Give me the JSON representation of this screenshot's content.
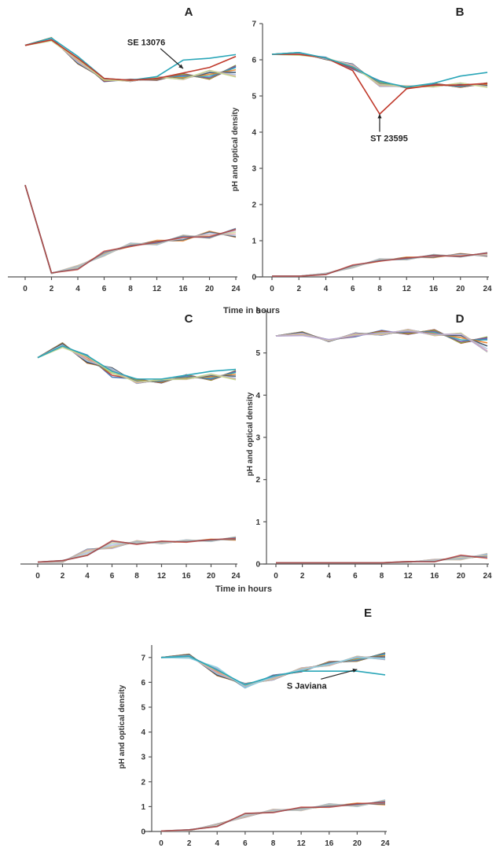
{
  "figure": {
    "x_axis_title": "Time in hours",
    "y_axis_title": "pH and optical density"
  },
  "palette": [
    "#3b6fb6",
    "#c0392b",
    "#8bb43a",
    "#7a4fa3",
    "#2aa6b8",
    "#e67e22",
    "#34495e",
    "#a8c3e6",
    "#e8a0a0",
    "#c3d88f",
    "#b9a4d6",
    "#8fd3df",
    "#f5b97d"
  ],
  "chart_data": [
    {
      "panel": "A",
      "type": "line",
      "categories": [
        "0",
        "2",
        "4",
        "6",
        "8",
        "12",
        "16",
        "20",
        "24"
      ],
      "ylim": [
        0,
        7
      ],
      "y_ticks": [],
      "show_y_axis": false,
      "show_xlabel": true,
      "annotation": {
        "text": "SE 13076",
        "point": {
          "x": 6,
          "y": 5.67
        },
        "text_at": {
          "x": 4.6,
          "y": 6.3
        }
      },
      "groups": [
        {
          "kind": "pH",
          "count": 10,
          "base": [
            6.3,
            6.45,
            5.9,
            5.35,
            5.35,
            5.4,
            5.45,
            5.5,
            5.6
          ],
          "spread": [
            0,
            0.06,
            0.1,
            0.05,
            0.03,
            0.05,
            0.08,
            0.12,
            0.16
          ]
        },
        {
          "kind": "highlight",
          "name": "SE 13076",
          "color": "#2aa6b8",
          "values": [
            6.3,
            6.5,
            6.0,
            5.4,
            5.35,
            5.45,
            5.9,
            5.95,
            6.05
          ]
        },
        {
          "kind": "highlight",
          "name": "",
          "color": "#c0392b",
          "values": [
            6.3,
            6.45,
            5.95,
            5.4,
            5.35,
            5.4,
            5.55,
            5.7,
            6.0
          ]
        },
        {
          "kind": "OD",
          "count": 10,
          "base": [
            2.5,
            0.1,
            0.25,
            0.65,
            0.85,
            0.95,
            1.05,
            1.15,
            1.2
          ],
          "spread": [
            0,
            0.01,
            0.06,
            0.08,
            0.07,
            0.08,
            0.09,
            0.1,
            0.12
          ]
        }
      ]
    },
    {
      "panel": "B",
      "type": "line",
      "categories": [
        "0",
        "2",
        "4",
        "6",
        "8",
        "12",
        "16",
        "20",
        "24"
      ],
      "ylim": [
        0,
        7
      ],
      "y_ticks": [
        "0",
        "1",
        "2",
        "3",
        "4",
        "5",
        "6",
        "7"
      ],
      "show_y_axis": true,
      "show_xlabel": false,
      "annotation": {
        "text": "ST 23595",
        "point": {
          "x": 4,
          "y": 4.5
        },
        "text_at": {
          "x": 4.35,
          "y": 3.75
        }
      },
      "groups": [
        {
          "kind": "pH",
          "count": 10,
          "base": [
            6.15,
            6.15,
            6.05,
            5.8,
            5.35,
            5.25,
            5.3,
            5.3,
            5.3
          ],
          "spread": [
            0,
            0.05,
            0.04,
            0.08,
            0.08,
            0.03,
            0.05,
            0.06,
            0.06
          ]
        },
        {
          "kind": "highlight",
          "name": "ST 23595",
          "color": "#c0392b",
          "values": [
            6.15,
            6.15,
            6.05,
            5.7,
            4.5,
            5.2,
            5.3,
            5.3,
            5.35
          ]
        },
        {
          "kind": "highlight",
          "name": "",
          "color": "#2aa6b8",
          "values": [
            6.15,
            6.2,
            6.05,
            5.8,
            5.4,
            5.25,
            5.35,
            5.55,
            5.65
          ]
        },
        {
          "kind": "OD",
          "count": 10,
          "base": [
            0.02,
            0.02,
            0.08,
            0.3,
            0.45,
            0.52,
            0.57,
            0.6,
            0.62
          ],
          "spread": [
            0,
            0,
            0.02,
            0.05,
            0.05,
            0.05,
            0.05,
            0.05,
            0.05
          ]
        }
      ]
    },
    {
      "panel": "C",
      "type": "line",
      "categories": [
        "0",
        "2",
        "4",
        "6",
        "8",
        "12",
        "16",
        "20",
        "24"
      ],
      "ylim": [
        0,
        6
      ],
      "y_ticks": [],
      "show_y_axis": false,
      "show_xlabel": true,
      "annotation": null,
      "groups": [
        {
          "kind": "pH",
          "count": 10,
          "base": [
            5.3,
            5.6,
            5.3,
            4.9,
            4.7,
            4.7,
            4.8,
            4.8,
            4.85
          ],
          "spread": [
            0,
            0.08,
            0.14,
            0.14,
            0.06,
            0.05,
            0.06,
            0.08,
            0.12
          ]
        },
        {
          "kind": "highlight",
          "name": "",
          "color": "#2aa6b8",
          "values": [
            5.3,
            5.6,
            5.35,
            4.95,
            4.75,
            4.75,
            4.85,
            4.95,
            5.0
          ]
        },
        {
          "kind": "OD",
          "count": 10,
          "base": [
            0.05,
            0.07,
            0.3,
            0.5,
            0.55,
            0.56,
            0.58,
            0.62,
            0.65
          ],
          "spread": [
            0,
            0.02,
            0.08,
            0.1,
            0.05,
            0.04,
            0.04,
            0.04,
            0.05
          ]
        }
      ]
    },
    {
      "panel": "D",
      "type": "line",
      "categories": [
        "0",
        "2",
        "4",
        "6",
        "8",
        "12",
        "16",
        "20",
        "24"
      ],
      "ylim": [
        0,
        6
      ],
      "y_ticks": [
        "0",
        "1",
        "2",
        "3",
        "4",
        "5",
        "6"
      ],
      "show_y_axis": true,
      "show_xlabel": false,
      "annotation": null,
      "groups": [
        {
          "kind": "pH",
          "count": 11,
          "base": [
            5.4,
            5.45,
            5.3,
            5.42,
            5.48,
            5.5,
            5.48,
            5.35,
            5.2
          ],
          "spread": [
            0,
            0.05,
            0.03,
            0.05,
            0.06,
            0.06,
            0.07,
            0.12,
            0.18
          ]
        },
        {
          "kind": "OD",
          "count": 10,
          "base": [
            0.03,
            0.03,
            0.03,
            0.03,
            0.03,
            0.05,
            0.08,
            0.16,
            0.18
          ],
          "spread": [
            0,
            0,
            0,
            0,
            0,
            0.01,
            0.03,
            0.06,
            0.07
          ]
        }
      ]
    },
    {
      "panel": "E",
      "type": "line",
      "categories": [
        "0",
        "2",
        "4",
        "6",
        "8",
        "12",
        "16",
        "20",
        "24"
      ],
      "ylim": [
        0,
        7.5
      ],
      "y_ticks": [
        "0",
        "1",
        "2",
        "3",
        "4",
        "5",
        "6",
        "7"
      ],
      "show_y_axis": true,
      "show_xlabel": false,
      "annotation": {
        "text": "S Javiana",
        "point": {
          "x": 7,
          "y": 6.52
        },
        "text_at": {
          "x": 5.2,
          "y": 5.75
        }
      },
      "groups": [
        {
          "kind": "pH",
          "count": 12,
          "base": [
            7.0,
            7.05,
            6.45,
            5.85,
            6.2,
            6.5,
            6.75,
            6.95,
            7.05
          ],
          "spread": [
            0,
            0.08,
            0.18,
            0.1,
            0.1,
            0.08,
            0.08,
            0.1,
            0.14
          ]
        },
        {
          "kind": "highlight",
          "name": "S Javiana",
          "color": "#2aa6b8",
          "values": [
            7.0,
            7.05,
            6.5,
            5.9,
            6.25,
            6.45,
            6.45,
            6.45,
            6.3
          ]
        },
        {
          "kind": "OD",
          "count": 10,
          "base": [
            0.02,
            0.05,
            0.25,
            0.65,
            0.82,
            0.92,
            1.02,
            1.1,
            1.15
          ],
          "spread": [
            0,
            0.02,
            0.05,
            0.08,
            0.07,
            0.08,
            0.1,
            0.1,
            0.12
          ]
        }
      ]
    }
  ]
}
